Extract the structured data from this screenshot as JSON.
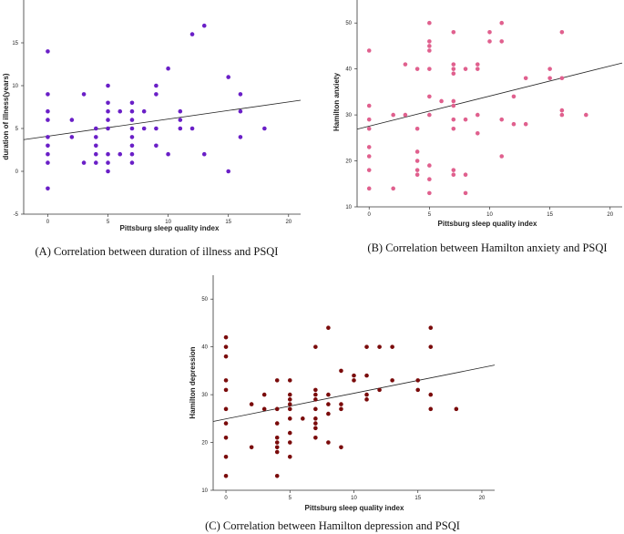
{
  "chart_data": [
    {
      "id": "A",
      "type": "scatter",
      "title": "(A) Correlation between duration of illness and PSQI",
      "xlabel": "Pittsburg sleep quality index",
      "ylabel": "duration of illness(years)",
      "xlim": [
        -2,
        21
      ],
      "ylim": [
        -5,
        20
      ],
      "xticks": [
        0,
        5,
        10,
        15,
        20
      ],
      "yticks": [
        -5,
        0,
        5,
        10,
        15
      ],
      "point_color": "#6a1fc7",
      "fit_line": {
        "x": [
          -2,
          21
        ],
        "y": [
          3.7,
          8.3
        ]
      },
      "points": [
        [
          0,
          14
        ],
        [
          0,
          9
        ],
        [
          0,
          7
        ],
        [
          0,
          6
        ],
        [
          0,
          4
        ],
        [
          0,
          3
        ],
        [
          0,
          2
        ],
        [
          0,
          1
        ],
        [
          0,
          -2
        ],
        [
          2,
          6
        ],
        [
          2,
          4
        ],
        [
          3,
          9
        ],
        [
          3,
          1
        ],
        [
          4,
          5
        ],
        [
          4,
          4
        ],
        [
          4,
          3
        ],
        [
          4,
          2
        ],
        [
          4,
          1
        ],
        [
          5,
          10
        ],
        [
          5,
          8
        ],
        [
          5,
          7
        ],
        [
          5,
          6
        ],
        [
          5,
          5
        ],
        [
          5,
          2
        ],
        [
          5,
          1
        ],
        [
          5,
          0
        ],
        [
          6,
          7
        ],
        [
          6,
          2
        ],
        [
          7,
          8
        ],
        [
          7,
          7
        ],
        [
          7,
          6
        ],
        [
          7,
          5
        ],
        [
          7,
          4
        ],
        [
          7,
          3
        ],
        [
          7,
          2
        ],
        [
          7,
          1
        ],
        [
          8,
          7
        ],
        [
          8,
          5
        ],
        [
          9,
          10
        ],
        [
          9,
          9
        ],
        [
          9,
          5
        ],
        [
          9,
          3
        ],
        [
          10,
          12
        ],
        [
          10,
          2
        ],
        [
          11,
          7
        ],
        [
          11,
          6
        ],
        [
          11,
          5
        ],
        [
          12,
          16
        ],
        [
          12,
          5
        ],
        [
          13,
          17
        ],
        [
          13,
          2
        ],
        [
          15,
          11
        ],
        [
          15,
          0
        ],
        [
          16,
          9
        ],
        [
          16,
          7
        ],
        [
          16,
          4
        ],
        [
          18,
          5
        ]
      ]
    },
    {
      "id": "B",
      "type": "scatter",
      "title": "(B) Correlation between Hamilton anxiety and PSQI",
      "xlabel": "Pittsburg sleep quality index",
      "ylabel": "Hamilton anxiety",
      "xlim": [
        -1,
        21
      ],
      "ylim": [
        10,
        55
      ],
      "xticks": [
        0,
        5,
        10,
        15,
        20
      ],
      "yticks": [
        10,
        20,
        30,
        40,
        50
      ],
      "point_color": "#e0608e",
      "fit_line": {
        "x": [
          -1,
          21
        ],
        "y": [
          26.9,
          41.3
        ]
      },
      "points": [
        [
          0,
          44
        ],
        [
          0,
          32
        ],
        [
          0,
          29
        ],
        [
          0,
          27
        ],
        [
          0,
          23
        ],
        [
          0,
          21
        ],
        [
          0,
          18
        ],
        [
          0,
          14
        ],
        [
          2,
          30
        ],
        [
          2,
          14
        ],
        [
          3,
          41
        ],
        [
          3,
          30
        ],
        [
          4,
          40
        ],
        [
          4,
          27
        ],
        [
          4,
          22
        ],
        [
          4,
          20
        ],
        [
          4,
          18
        ],
        [
          4,
          17
        ],
        [
          5,
          50
        ],
        [
          5,
          46
        ],
        [
          5,
          45
        ],
        [
          5,
          44
        ],
        [
          5,
          40
        ],
        [
          5,
          34
        ],
        [
          5,
          30
        ],
        [
          5,
          19
        ],
        [
          5,
          16
        ],
        [
          5,
          13
        ],
        [
          6,
          33
        ],
        [
          7,
          48
        ],
        [
          7,
          41
        ],
        [
          7,
          40
        ],
        [
          7,
          39
        ],
        [
          7,
          33
        ],
        [
          7,
          32
        ],
        [
          7,
          29
        ],
        [
          7,
          27
        ],
        [
          7,
          18
        ],
        [
          7,
          17
        ],
        [
          8,
          40
        ],
        [
          8,
          29
        ],
        [
          8,
          17
        ],
        [
          8,
          13
        ],
        [
          9,
          41
        ],
        [
          9,
          40
        ],
        [
          9,
          30
        ],
        [
          9,
          26
        ],
        [
          10,
          48
        ],
        [
          10,
          46
        ],
        [
          11,
          50
        ],
        [
          11,
          46
        ],
        [
          11,
          29
        ],
        [
          11,
          21
        ],
        [
          12,
          34
        ],
        [
          12,
          28
        ],
        [
          13,
          38
        ],
        [
          13,
          28
        ],
        [
          15,
          40
        ],
        [
          15,
          38
        ],
        [
          16,
          48
        ],
        [
          16,
          38
        ],
        [
          16,
          31
        ],
        [
          16,
          30
        ],
        [
          18,
          30
        ]
      ]
    },
    {
      "id": "C",
      "type": "scatter",
      "title": "(C) Correlation between Hamilton depression and PSQI",
      "xlabel": "Pittsburg sleep quality index",
      "ylabel": "Hamilton depression",
      "xlim": [
        -1,
        21
      ],
      "ylim": [
        10,
        55
      ],
      "xticks": [
        0,
        5,
        10,
        15,
        20
      ],
      "yticks": [
        10,
        20,
        30,
        40,
        50
      ],
      "point_color": "#7a0b0b",
      "fit_line": {
        "x": [
          -1,
          21
        ],
        "y": [
          24.4,
          36.2
        ]
      },
      "points": [
        [
          0,
          42
        ],
        [
          0,
          40
        ],
        [
          0,
          38
        ],
        [
          0,
          33
        ],
        [
          0,
          31
        ],
        [
          0,
          27
        ],
        [
          0,
          24
        ],
        [
          0,
          21
        ],
        [
          0,
          17
        ],
        [
          0,
          13
        ],
        [
          2,
          28
        ],
        [
          2,
          19
        ],
        [
          3,
          30
        ],
        [
          3,
          27
        ],
        [
          4,
          33
        ],
        [
          4,
          27
        ],
        [
          4,
          24
        ],
        [
          4,
          21
        ],
        [
          4,
          20
        ],
        [
          4,
          19
        ],
        [
          4,
          18
        ],
        [
          4,
          13
        ],
        [
          5,
          33
        ],
        [
          5,
          30
        ],
        [
          5,
          29
        ],
        [
          5,
          28
        ],
        [
          5,
          27
        ],
        [
          5,
          25
        ],
        [
          5,
          22
        ],
        [
          5,
          20
        ],
        [
          5,
          17
        ],
        [
          6,
          25
        ],
        [
          7,
          40
        ],
        [
          7,
          31
        ],
        [
          7,
          30
        ],
        [
          7,
          29
        ],
        [
          7,
          27
        ],
        [
          7,
          25
        ],
        [
          7,
          24
        ],
        [
          7,
          23
        ],
        [
          7,
          21
        ],
        [
          8,
          44
        ],
        [
          8,
          30
        ],
        [
          8,
          28
        ],
        [
          8,
          26
        ],
        [
          8,
          20
        ],
        [
          9,
          35
        ],
        [
          9,
          28
        ],
        [
          9,
          27
        ],
        [
          9,
          19
        ],
        [
          10,
          34
        ],
        [
          10,
          33
        ],
        [
          11,
          40
        ],
        [
          11,
          34
        ],
        [
          11,
          30
        ],
        [
          11,
          29
        ],
        [
          12,
          40
        ],
        [
          12,
          31
        ],
        [
          13,
          40
        ],
        [
          13,
          33
        ],
        [
          15,
          33
        ],
        [
          15,
          31
        ],
        [
          16,
          44
        ],
        [
          16,
          40
        ],
        [
          16,
          30
        ],
        [
          16,
          27
        ],
        [
          18,
          27
        ]
      ]
    }
  ]
}
